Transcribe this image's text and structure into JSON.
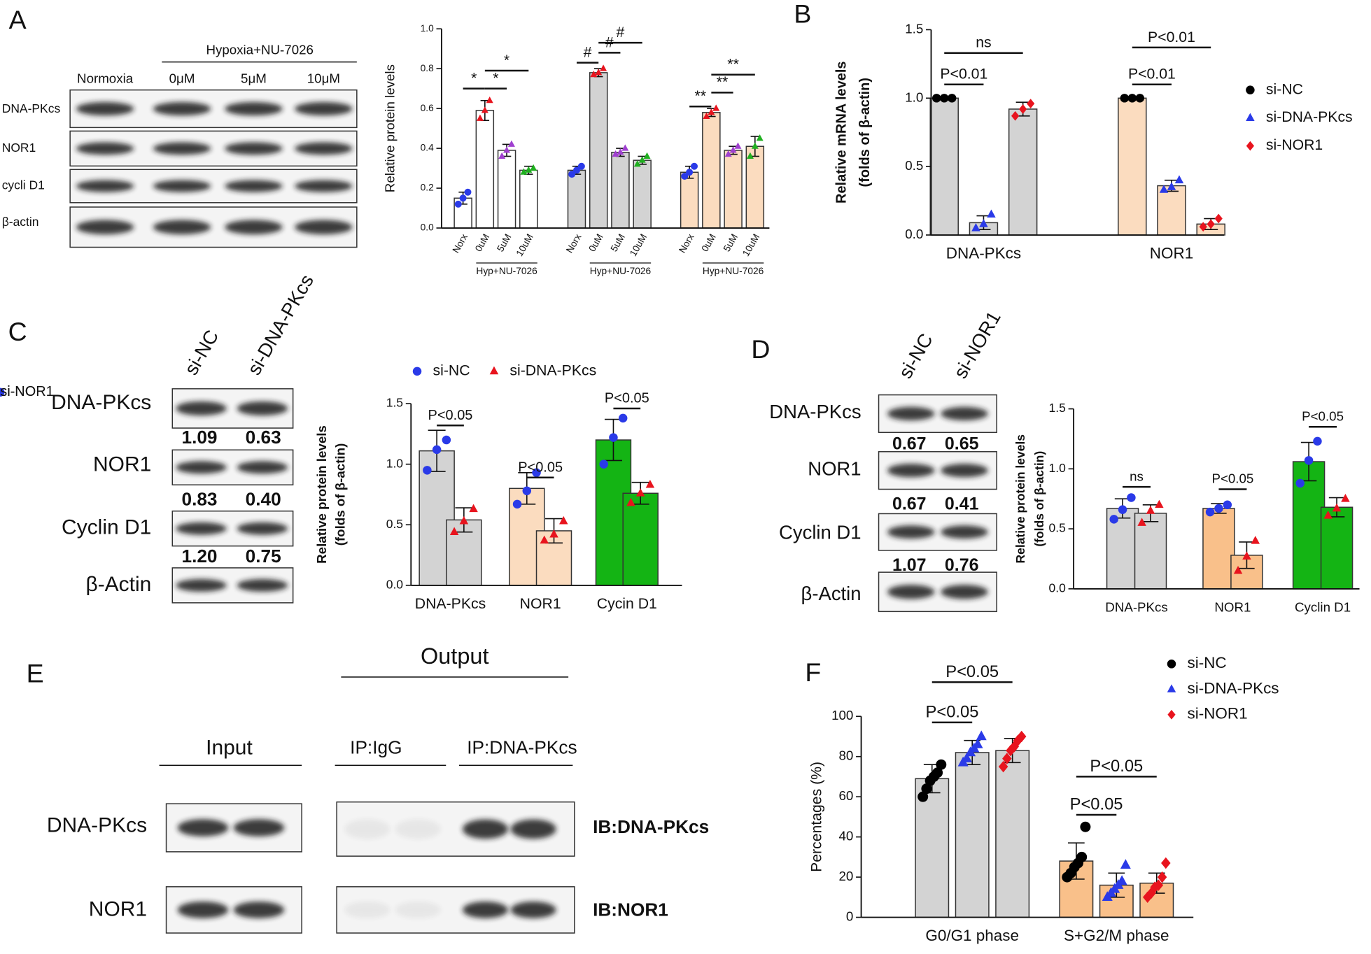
{
  "panel_labels": [
    "A",
    "B",
    "C",
    "D",
    "E",
    "F"
  ],
  "blots": {
    "A": {
      "treatment": "Hypoxia+NU-7026",
      "lanes": [
        "Normoxia",
        "0μM",
        "5μM",
        "10μM"
      ],
      "rows": [
        "DNA-PKcs",
        "NOR1",
        "cycli D1",
        "β-actin"
      ]
    },
    "C": {
      "lanes": [
        "si-NC",
        "si-DNA-PKcs"
      ],
      "rows": [
        "DNA-PKcs",
        "NOR1",
        "Cyclin D1",
        "β-Actin"
      ],
      "quant": [
        [
          "1.09",
          "0.63"
        ],
        [
          "0.83",
          "0.40"
        ],
        [
          "1.20",
          "0.75"
        ]
      ]
    },
    "D": {
      "lanes": [
        "si-NC",
        "si-NOR1"
      ],
      "rows": [
        "DNA-PKcs",
        "NOR1",
        "Cyclin D1",
        "β-Actin"
      ],
      "quant": [
        [
          "0.67",
          "0.65"
        ],
        [
          "0.67",
          "0.41"
        ],
        [
          "1.07",
          "0.76"
        ]
      ]
    },
    "E": {
      "output": "Output",
      "input": "Input",
      "lanes": [
        "IP:IgG",
        "IP:DNA-PKcs"
      ],
      "rows": [
        "DNA-PKcs",
        "NOR1"
      ],
      "blots": [
        "IB:DNA-PKcs",
        "IB:NOR1"
      ]
    }
  },
  "chart_data": [
    {
      "type": "bar",
      "ylabel": [
        "Relative protein levels"
      ],
      "categories": [
        null,
        null,
        null
      ],
      "group_label": "Hyp+NU-7026",
      "bar_colors": [
        "#ffffff",
        "#d3d3d3",
        "#fbdcbf"
      ],
      "series": [
        {
          "name": "Norx",
          "color": "#2a3ae8",
          "marker": "circle",
          "values": [
            0.15,
            0.29,
            0.28
          ],
          "errors": [
            0.03,
            0.02,
            0.03
          ],
          "points": [
            [
              0.12,
              0.15,
              0.18
            ],
            [
              0.27,
              0.29,
              0.31
            ],
            [
              0.26,
              0.28,
              0.31
            ]
          ]
        },
        {
          "name": "0uM",
          "color": "#e8141e",
          "marker": "triangle",
          "values": [
            0.59,
            0.78,
            0.58
          ],
          "errors": [
            0.05,
            0.02,
            0.02
          ],
          "points": [
            [
              0.55,
              0.59,
              0.64
            ],
            [
              0.77,
              0.78,
              0.8
            ],
            [
              0.56,
              0.58,
              0.6
            ]
          ]
        },
        {
          "name": "5uM",
          "color": "#a040d0",
          "marker": "triangle",
          "values": [
            0.39,
            0.38,
            0.39
          ],
          "errors": [
            0.03,
            0.02,
            0.02
          ],
          "points": [
            [
              0.36,
              0.39,
              0.42
            ],
            [
              0.37,
              0.38,
              0.4
            ],
            [
              0.37,
              0.39,
              0.41
            ]
          ]
        },
        {
          "name": "10uM",
          "color": "#20b020",
          "marker": "triangle",
          "values": [
            0.29,
            0.34,
            0.41
          ],
          "errors": [
            0.02,
            0.02,
            0.05
          ],
          "points": [
            [
              0.28,
              0.29,
              0.3
            ],
            [
              0.32,
              0.34,
              0.36
            ],
            [
              0.36,
              0.41,
              0.45
            ]
          ]
        }
      ],
      "ylim": [
        0,
        1
      ],
      "yticks": [
        {
          "value": 0,
          "label": "0.0"
        },
        0.2,
        0.4,
        0.6,
        0.8,
        {
          "value": 1,
          "label": "1.0"
        }
      ],
      "annotations": [
        "*",
        "*",
        "*",
        "#",
        "#",
        "#",
        "**",
        "**",
        "**"
      ]
    },
    {
      "type": "bar",
      "ylabel": [
        "Relative mRNA levels",
        "(folds of β-actin)"
      ],
      "categories": [
        "DNA-PKcs",
        "NOR1"
      ],
      "bar_colors": [
        "#d3d3d3",
        "#fbdcbf"
      ],
      "legend": "right",
      "series": [
        {
          "name": "si-NC",
          "color": "#000000",
          "marker": "circle",
          "values": [
            1.0,
            1.0
          ],
          "errors": [
            0.01,
            0.01
          ],
          "points": [
            [
              1.0,
              1.0,
              1.0
            ],
            [
              1.0,
              1.0,
              1.0
            ]
          ]
        },
        {
          "name": "si-DNA-PKcs",
          "color": "#2a3ae8",
          "marker": "triangle",
          "values": [
            0.09,
            0.36
          ],
          "errors": [
            0.05,
            0.04
          ],
          "points": [
            [
              0.05,
              0.08,
              0.15
            ],
            [
              0.33,
              0.35,
              0.4
            ]
          ]
        },
        {
          "name": "si-NOR1",
          "color": "#e8141e",
          "marker": "diamond",
          "values": [
            0.92,
            0.08
          ],
          "errors": [
            0.05,
            0.04
          ],
          "points": [
            [
              0.87,
              0.92,
              0.96
            ],
            [
              0.06,
              0.08,
              0.12
            ]
          ]
        }
      ],
      "ylim": [
        0,
        1.5
      ],
      "yticks": [
        {
          "value": 0,
          "label": "0.0"
        },
        0.5,
        {
          "value": 1,
          "label": "1.0"
        },
        1.5
      ],
      "annotations": [
        "P<0.01",
        "ns",
        "P<0.01",
        "P<0.01"
      ]
    },
    {
      "type": "bar",
      "ylabel": [
        "Relative protein levels",
        "(folds of β-actin)"
      ],
      "categories": [
        "DNA-PKcs",
        "NOR1",
        "Cycin D1"
      ],
      "bar_colors": [
        "#d3d3d3",
        "#fbdcbf",
        "#14b414"
      ],
      "legend": "top",
      "series": [
        {
          "name": "si-NC",
          "color": "#2a3ae8",
          "marker": "circle",
          "values": [
            1.11,
            0.8,
            1.2
          ],
          "errors": [
            0.17,
            0.13,
            0.17
          ],
          "points": [
            [
              0.95,
              1.12,
              1.2
            ],
            [
              0.67,
              0.78,
              0.93
            ],
            [
              1.0,
              1.22,
              1.38
            ]
          ]
        },
        {
          "name": "si-DNA-PKcs",
          "color": "#e8141e",
          "marker": "triangle",
          "values": [
            0.54,
            0.45,
            0.76
          ],
          "errors": [
            0.1,
            0.1,
            0.09
          ],
          "points": [
            [
              0.44,
              0.53,
              0.63
            ],
            [
              0.37,
              0.42,
              0.53
            ],
            [
              0.68,
              0.76,
              0.83
            ]
          ]
        }
      ],
      "ylim": [
        0,
        1.5
      ],
      "yticks": [
        {
          "value": 0,
          "label": "0.0"
        },
        0.5,
        {
          "value": 1,
          "label": "1.0"
        },
        1.5
      ],
      "annotations": [
        "P<0.05",
        "P<0.05",
        "P<0.05"
      ]
    },
    {
      "type": "bar",
      "ylabel": [
        "Relative protein levels",
        "(folds of β-actin)"
      ],
      "categories": [
        "DNA-PKcs",
        "NOR1",
        "Cyclin D1"
      ],
      "bar_colors": [
        "#d3d3d3",
        "#f9c08a",
        "#14b414"
      ],
      "legend": "top",
      "series": [
        {
          "name": "si-NC",
          "color": "#2a3ae8",
          "marker": "circle",
          "values": [
            0.67,
            0.67,
            1.06
          ],
          "errors": [
            0.08,
            0.04,
            0.16
          ],
          "points": [
            [
              0.58,
              0.66,
              0.76
            ],
            [
              0.64,
              0.67,
              0.7
            ],
            [
              0.88,
              1.07,
              1.23
            ]
          ]
        },
        {
          "name": "si-NOR1",
          "color": "#e8141e",
          "marker": "triangle",
          "values": [
            0.63,
            0.28,
            0.68
          ],
          "errors": [
            0.07,
            0.11,
            0.08
          ],
          "points": [
            [
              0.55,
              0.65,
              0.7
            ],
            [
              0.15,
              0.27,
              0.4
            ],
            [
              0.61,
              0.67,
              0.75
            ]
          ]
        }
      ],
      "ylim": [
        0,
        1.5
      ],
      "yticks": [
        {
          "value": 0,
          "label": "0.0"
        },
        0.5,
        {
          "value": 1,
          "label": "1.0"
        },
        1.5
      ],
      "annotations": [
        "ns",
        "P<0.05",
        "P<0.05"
      ]
    },
    {
      "type": "bar",
      "ylabel": [
        "Percentages (%)"
      ],
      "categories": [
        "G0/G1 phase",
        "S+G2/M  phase"
      ],
      "bar_colors": [
        "#d3d3d3",
        "#f9c08a"
      ],
      "legend": "right",
      "series": [
        {
          "name": "si-NC",
          "color": "#000000",
          "marker": "circle",
          "values": [
            69,
            28
          ],
          "errors": [
            7,
            9
          ],
          "points": [
            [
              60,
              64,
              68,
              70,
              72,
              76
            ],
            [
              20,
              22,
              25,
              27,
              30,
              45
            ]
          ]
        },
        {
          "name": "si-DNA-PKcs",
          "color": "#2a3ae8",
          "marker": "triangle",
          "values": [
            82,
            16
          ],
          "errors": [
            6,
            6
          ],
          "points": [
            [
              77,
              79,
              82,
              84,
              86,
              90
            ],
            [
              10,
              12,
              14,
              16,
              18,
              26
            ]
          ]
        },
        {
          "name": "si-NOR1",
          "color": "#e8141e",
          "marker": "diamond",
          "values": [
            83,
            17
          ],
          "errors": [
            6,
            5
          ],
          "points": [
            [
              75,
              79,
              83,
              85,
              88,
              90
            ],
            [
              10,
              12,
              15,
              16,
              20,
              27
            ]
          ]
        }
      ],
      "ylim": [
        0,
        100
      ],
      "yticks": [
        0,
        20,
        40,
        60,
        80,
        100
      ],
      "annotations": [
        "P<0.05",
        "P<0.05",
        "P<0.05",
        "P<0.05"
      ]
    }
  ]
}
